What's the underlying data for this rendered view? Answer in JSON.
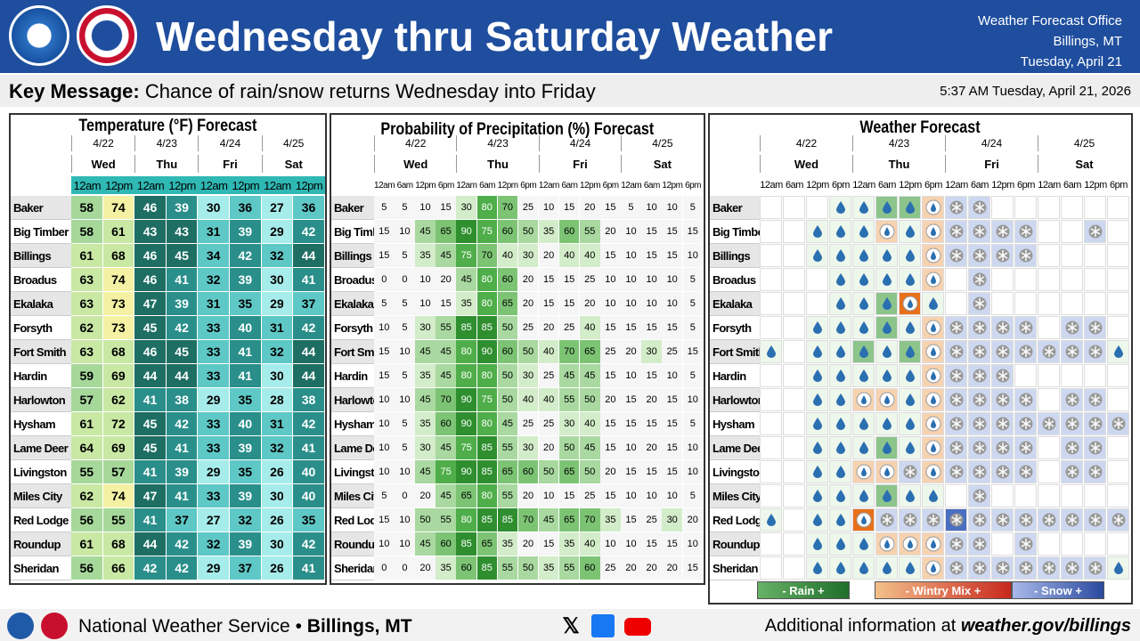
{
  "header": {
    "title": "Wednesday thru Saturday Weather",
    "office": "Weather Forecast Office",
    "location": "Billings, MT",
    "date": "Tuesday, April 21"
  },
  "key_message": {
    "label": "Key Message:",
    "text": "Chance of rain/snow returns Wednesday into Friday",
    "timestamp": "5:37 AM Tuesday, April 21, 2026"
  },
  "towns": [
    "Baker",
    "Big Timber",
    "Billings",
    "Broadus",
    "Ekalaka",
    "Forsyth",
    "Fort Smith",
    "Hardin",
    "Harlowton",
    "Hysham",
    "Lame Deer",
    "Livingston",
    "Miles City",
    "Red Lodge",
    "Roundup",
    "Sheridan"
  ],
  "days": [
    {
      "date": "4/22",
      "day": "Wed"
    },
    {
      "date": "4/23",
      "day": "Thu"
    },
    {
      "date": "4/24",
      "day": "Fri"
    },
    {
      "date": "4/25",
      "day": "Sat"
    }
  ],
  "temperature": {
    "title": "Temperature (°F) Forecast",
    "times": [
      "12am",
      "12pm"
    ],
    "rows": [
      [
        58,
        74,
        46,
        39,
        30,
        36,
        27,
        36
      ],
      [
        58,
        61,
        43,
        43,
        31,
        39,
        29,
        42
      ],
      [
        61,
        68,
        46,
        45,
        34,
        42,
        32,
        44
      ],
      [
        63,
        74,
        46,
        41,
        32,
        39,
        30,
        41
      ],
      [
        63,
        73,
        47,
        39,
        31,
        35,
        29,
        37
      ],
      [
        62,
        73,
        45,
        42,
        33,
        40,
        31,
        42
      ],
      [
        63,
        68,
        46,
        45,
        33,
        41,
        32,
        44
      ],
      [
        59,
        69,
        44,
        44,
        33,
        41,
        30,
        44
      ],
      [
        57,
        62,
        41,
        38,
        29,
        35,
        28,
        38
      ],
      [
        61,
        72,
        45,
        42,
        33,
        40,
        31,
        42
      ],
      [
        64,
        69,
        45,
        41,
        33,
        39,
        32,
        41
      ],
      [
        55,
        57,
        41,
        39,
        29,
        35,
        26,
        40
      ],
      [
        62,
        74,
        47,
        41,
        33,
        39,
        30,
        40
      ],
      [
        56,
        55,
        41,
        37,
        27,
        32,
        26,
        35
      ],
      [
        61,
        68,
        44,
        42,
        32,
        39,
        30,
        42
      ],
      [
        56,
        66,
        42,
        42,
        29,
        37,
        26,
        41
      ]
    ]
  },
  "precipitation": {
    "title": "Probability of Precipitation (%) Forecast",
    "times": [
      "12am",
      "6am",
      "12pm",
      "6pm"
    ],
    "rows": [
      [
        5,
        5,
        10,
        15,
        30,
        80,
        70,
        25,
        10,
        15,
        20,
        15,
        5,
        10,
        10,
        5
      ],
      [
        15,
        10,
        45,
        65,
        90,
        75,
        60,
        50,
        35,
        60,
        55,
        20,
        10,
        15,
        15,
        15
      ],
      [
        15,
        5,
        35,
        45,
        75,
        70,
        40,
        30,
        20,
        40,
        40,
        15,
        10,
        15,
        15,
        10
      ],
      [
        0,
        0,
        10,
        20,
        45,
        80,
        60,
        20,
        15,
        15,
        25,
        10,
        10,
        10,
        10,
        5
      ],
      [
        5,
        5,
        10,
        15,
        35,
        80,
        65,
        20,
        15,
        15,
        20,
        10,
        10,
        10,
        10,
        5
      ],
      [
        10,
        5,
        30,
        55,
        85,
        85,
        50,
        25,
        20,
        25,
        40,
        15,
        15,
        15,
        15,
        5
      ],
      [
        15,
        10,
        45,
        45,
        80,
        90,
        60,
        50,
        40,
        70,
        65,
        25,
        20,
        30,
        25,
        15
      ],
      [
        15,
        5,
        35,
        45,
        80,
        80,
        50,
        30,
        25,
        45,
        45,
        15,
        10,
        15,
        10,
        5
      ],
      [
        10,
        10,
        45,
        70,
        90,
        75,
        50,
        40,
        40,
        55,
        50,
        20,
        15,
        20,
        15,
        10
      ],
      [
        10,
        5,
        35,
        60,
        90,
        80,
        45,
        25,
        25,
        30,
        40,
        15,
        15,
        15,
        15,
        5
      ],
      [
        10,
        5,
        30,
        45,
        75,
        85,
        55,
        30,
        20,
        50,
        45,
        15,
        10,
        20,
        15,
        10
      ],
      [
        10,
        10,
        45,
        75,
        90,
        85,
        65,
        60,
        50,
        65,
        50,
        20,
        15,
        15,
        15,
        10
      ],
      [
        5,
        0,
        20,
        45,
        65,
        80,
        55,
        20,
        10,
        15,
        25,
        15,
        10,
        10,
        10,
        5
      ],
      [
        15,
        10,
        50,
        55,
        80,
        85,
        85,
        70,
        45,
        65,
        70,
        35,
        15,
        25,
        30,
        20
      ],
      [
        10,
        10,
        45,
        60,
        85,
        65,
        35,
        20,
        15,
        35,
        40,
        10,
        10,
        15,
        15,
        10
      ],
      [
        0,
        0,
        20,
        35,
        60,
        85,
        55,
        50,
        35,
        55,
        60,
        25,
        20,
        20,
        20,
        15
      ]
    ]
  },
  "weather": {
    "title": "Weather Forecast",
    "times": [
      "12am",
      "6am",
      "12pm",
      "6pm"
    ],
    "legend": [
      "- Rain +",
      "- Wintry Mix +",
      "- Snow +"
    ]
  },
  "footer": {
    "agency": "National Weather Service",
    "separator": "•",
    "office": "Billings, MT",
    "info": "Additional information at",
    "url": "weather.gov/billings"
  }
}
